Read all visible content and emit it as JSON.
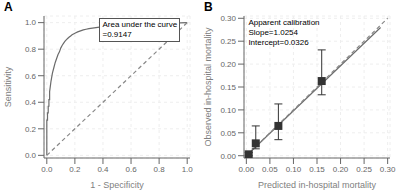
{
  "chart_data": [
    {
      "type": "line",
      "title": "A",
      "x_label": "1 - Specificity",
      "y_label": "Sensitivity",
      "annotation": "Area under the curve\n=0.9147",
      "xlim": [
        -0.02,
        1.02
      ],
      "ylim": [
        -0.02,
        1.05
      ],
      "xticks": [
        {
          "value": 0.0,
          "label": "0.0"
        },
        {
          "value": 0.2,
          "label": "0.2"
        },
        {
          "value": 0.4,
          "label": "0.4"
        },
        {
          "value": 0.6,
          "label": "0.6"
        },
        {
          "value": 0.8,
          "label": "0.8"
        },
        {
          "value": 1.0,
          "label": "1.0"
        }
      ],
      "yticks": [
        {
          "value": 0.0,
          "label": "0.0"
        },
        {
          "value": 0.2,
          "label": "0.2"
        },
        {
          "value": 0.4,
          "label": "0.4"
        },
        {
          "value": 0.6,
          "label": "0.6"
        },
        {
          "value": 0.8,
          "label": "0.8"
        },
        {
          "value": 1.0,
          "label": "1.0"
        }
      ],
      "series": [
        {
          "color": "#6b6b6b",
          "x": [
            0.0,
            0.0,
            0.005,
            0.005,
            0.01,
            0.01,
            0.015,
            0.015,
            0.02,
            0.02,
            0.025,
            0.03,
            0.035,
            0.04,
            0.05,
            0.06,
            0.07,
            0.08,
            0.09,
            0.1,
            0.11,
            0.12,
            0.13,
            0.14,
            0.15,
            0.16,
            0.17,
            0.18,
            0.19,
            0.2,
            0.22,
            0.24,
            0.26,
            0.28,
            0.3,
            0.35,
            0.4,
            0.5,
            0.6,
            0.7,
            0.8,
            0.9,
            1.0
          ],
          "values": [
            0.0,
            0.265,
            0.265,
            0.32,
            0.32,
            0.37,
            0.37,
            0.42,
            0.42,
            0.48,
            0.52,
            0.56,
            0.59,
            0.62,
            0.66,
            0.7,
            0.73,
            0.76,
            0.78,
            0.81,
            0.83,
            0.845,
            0.86,
            0.872,
            0.882,
            0.892,
            0.9,
            0.908,
            0.915,
            0.92,
            0.93,
            0.938,
            0.945,
            0.95,
            0.955,
            0.963,
            0.97,
            0.978,
            0.983,
            0.988,
            0.992,
            0.996,
            1.0
          ]
        },
        {
          "color": "#888888",
          "line_style": "dashed",
          "x": [
            0,
            1
          ],
          "values": [
            0,
            1
          ]
        }
      ]
    },
    {
      "type": "scatter",
      "title": "B",
      "x_label": "Predicted in-hospital mortality",
      "y_label": "Observed in-hospital mortality",
      "annotation": "Apparent calibration\nSlope=1.0254\nIntercept=0.0326",
      "xlim": [
        -0.005,
        0.305
      ],
      "ylim": [
        -0.005,
        0.305
      ],
      "xticks": [
        {
          "value": 0.0,
          "label": "0.00"
        },
        {
          "value": 0.05,
          "label": "0.05"
        },
        {
          "value": 0.1,
          "label": "0.10"
        },
        {
          "value": 0.15,
          "label": "0.15"
        },
        {
          "value": 0.2,
          "label": "0.20"
        },
        {
          "value": 0.25,
          "label": "0.25"
        },
        {
          "value": 0.3,
          "label": "0.30"
        }
      ],
      "yticks": [
        {
          "value": 0.0,
          "label": "0.00"
        },
        {
          "value": 0.05,
          "label": "0.05"
        },
        {
          "value": 0.1,
          "label": "0.10"
        },
        {
          "value": 0.15,
          "label": "0.15"
        },
        {
          "value": 0.2,
          "label": "0.20"
        },
        {
          "value": 0.25,
          "label": "0.25"
        },
        {
          "value": 0.3,
          "label": "0.30"
        }
      ],
      "series": [
        {
          "type": "line",
          "color": "#6b6b6b",
          "x": [
            0.0,
            0.285
          ],
          "values": [
            0.0,
            0.28
          ]
        },
        {
          "type": "line",
          "color": "#888888",
          "line_style": "dashed",
          "x": [
            0.0,
            0.3
          ],
          "values": [
            0.0,
            0.3
          ]
        },
        {
          "type": "scatter",
          "marker": "square",
          "color": "#333333",
          "x": [
            0.005,
            0.02,
            0.068,
            0.16
          ],
          "values": [
            0.003,
            0.027,
            0.065,
            0.163
          ],
          "error_low": [
            0.003,
            0.012,
            0.03,
            0.03
          ],
          "error_high": [
            0.004,
            0.038,
            0.048,
            0.068
          ]
        }
      ]
    }
  ]
}
